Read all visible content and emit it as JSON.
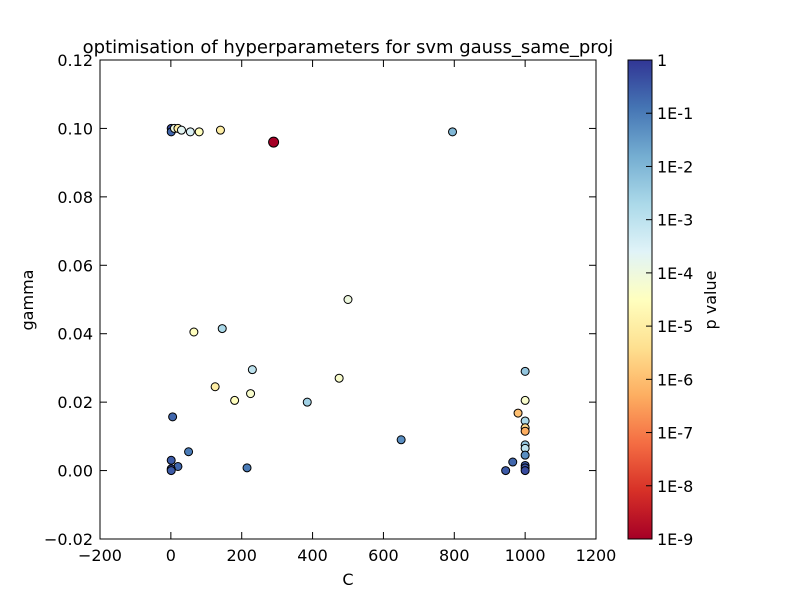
{
  "chart_data": {
    "type": "scatter",
    "title": "optimisation of hyperparameters for svm gauss_same_proj",
    "xlabel": "C",
    "ylabel": "gamma",
    "xlim": [
      -200,
      1200
    ],
    "ylim": [
      -0.02,
      0.12
    ],
    "xticks": [
      -200,
      0,
      200,
      400,
      600,
      800,
      1000,
      1200
    ],
    "xtick_labels": [
      "−200",
      "0",
      "200",
      "400",
      "600",
      "800",
      "1000",
      "1200"
    ],
    "yticks": [
      -0.02,
      0.0,
      0.02,
      0.04,
      0.06,
      0.08,
      0.1,
      0.12
    ],
    "ytick_labels": [
      "−0.02",
      "0.00",
      "0.02",
      "0.04",
      "0.06",
      "0.08",
      "0.10",
      "0.12"
    ],
    "grid": false,
    "colorbar": {
      "label": "p value",
      "scale": "log",
      "colormap": "RdYlBu",
      "range": [
        1e-09,
        1
      ],
      "tick_values": [
        1e-09,
        1e-08,
        1e-07,
        1e-06,
        1e-05,
        0.0001,
        0.001,
        0.01,
        0.1,
        1
      ],
      "tick_labels": [
        "1E-9",
        "1E-8",
        "1E-7",
        "1E-6",
        "1E-5",
        "1E-4",
        "1E-3",
        "1E-2",
        "1E-1",
        "1"
      ]
    },
    "points": [
      {
        "x": 1,
        "y": 0.1,
        "p": 0.5
      },
      {
        "x": 1,
        "y": 0.099,
        "p": 0.2
      },
      {
        "x": 10,
        "y": 0.1,
        "p": 0.0001
      },
      {
        "x": 20,
        "y": 0.1,
        "p": 1e-05
      },
      {
        "x": 30,
        "y": 0.0995,
        "p": 0.0002
      },
      {
        "x": 55,
        "y": 0.099,
        "p": 0.0003
      },
      {
        "x": 80,
        "y": 0.099,
        "p": 3e-05
      },
      {
        "x": 140,
        "y": 0.0995,
        "p": 1e-05
      },
      {
        "x": 290,
        "y": 0.096,
        "p": 1e-09
      },
      {
        "x": 795,
        "y": 0.099,
        "p": 0.01
      },
      {
        "x": 500,
        "y": 0.05,
        "p": 0.0001
      },
      {
        "x": 65,
        "y": 0.0405,
        "p": 3e-05
      },
      {
        "x": 145,
        "y": 0.0415,
        "p": 0.002
      },
      {
        "x": 230,
        "y": 0.0295,
        "p": 0.001
      },
      {
        "x": 475,
        "y": 0.027,
        "p": 5e-05
      },
      {
        "x": 125,
        "y": 0.0245,
        "p": 1e-05
      },
      {
        "x": 225,
        "y": 0.0225,
        "p": 5e-05
      },
      {
        "x": 180,
        "y": 0.0205,
        "p": 3e-05
      },
      {
        "x": 385,
        "y": 0.02,
        "p": 0.003
      },
      {
        "x": 5,
        "y": 0.0157,
        "p": 0.2
      },
      {
        "x": 650,
        "y": 0.009,
        "p": 0.05
      },
      {
        "x": 50,
        "y": 0.0055,
        "p": 0.1
      },
      {
        "x": 1,
        "y": 0.003,
        "p": 0.3
      },
      {
        "x": 20,
        "y": 0.0012,
        "p": 0.2
      },
      {
        "x": 1,
        "y": 0.0005,
        "p": 0.5
      },
      {
        "x": 1,
        "y": 0.0,
        "p": 0.3
      },
      {
        "x": 215,
        "y": 0.0008,
        "p": 0.1
      },
      {
        "x": 1000,
        "y": 0.029,
        "p": 0.005
      },
      {
        "x": 1000,
        "y": 0.0205,
        "p": 5e-05
      },
      {
        "x": 980,
        "y": 0.0168,
        "p": 1e-06
      },
      {
        "x": 1000,
        "y": 0.0145,
        "p": 0.002
      },
      {
        "x": 1000,
        "y": 0.0125,
        "p": 3e-06
      },
      {
        "x": 1000,
        "y": 0.0115,
        "p": 5e-07
      },
      {
        "x": 1000,
        "y": 0.0075,
        "p": 0.005
      },
      {
        "x": 1000,
        "y": 0.0065,
        "p": 0.001
      },
      {
        "x": 1000,
        "y": 0.0045,
        "p": 0.05
      },
      {
        "x": 965,
        "y": 0.0025,
        "p": 0.2
      },
      {
        "x": 945,
        "y": 0.0,
        "p": 0.3
      },
      {
        "x": 1000,
        "y": 0.0015,
        "p": 0.3
      },
      {
        "x": 1000,
        "y": 0.0008,
        "p": 0.4
      },
      {
        "x": 1000,
        "y": 0.0,
        "p": 0.5
      }
    ]
  }
}
